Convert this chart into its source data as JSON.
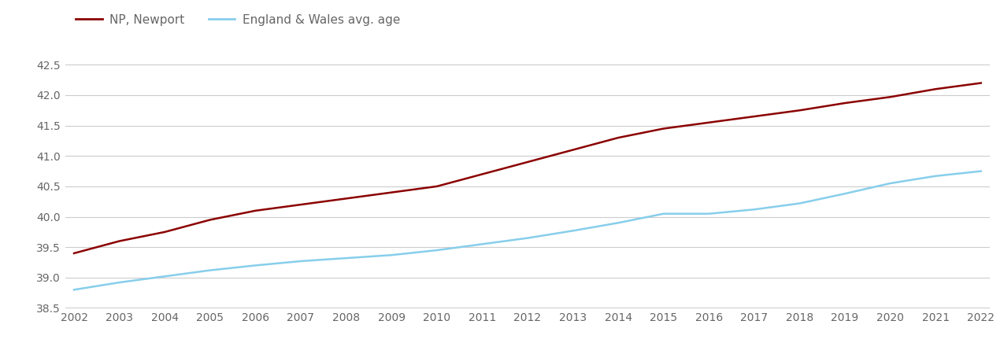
{
  "years": [
    2002,
    2003,
    2004,
    2005,
    2006,
    2007,
    2008,
    2009,
    2010,
    2011,
    2012,
    2013,
    2014,
    2015,
    2016,
    2017,
    2018,
    2019,
    2020,
    2021,
    2022
  ],
  "newport": [
    39.4,
    39.6,
    39.75,
    39.95,
    40.1,
    40.2,
    40.3,
    40.4,
    40.5,
    40.7,
    40.9,
    41.1,
    41.3,
    41.45,
    41.55,
    41.65,
    41.75,
    41.87,
    41.97,
    42.1,
    42.2
  ],
  "england_wales": [
    38.8,
    38.92,
    39.02,
    39.12,
    39.2,
    39.27,
    39.32,
    39.37,
    39.45,
    39.55,
    39.65,
    39.77,
    39.9,
    40.05,
    40.05,
    40.12,
    40.22,
    40.38,
    40.55,
    40.67,
    40.75
  ],
  "newport_color": "#8B0000",
  "england_wales_color": "#87CEEB",
  "newport_label": "NP, Newport",
  "england_wales_label": "England & Wales avg. age",
  "ylim": [
    38.5,
    42.75
  ],
  "yticks": [
    38.5,
    39.0,
    39.5,
    40.0,
    40.5,
    41.0,
    41.5,
    42.0,
    42.5
  ],
  "grid_color": "#cccccc",
  "background_color": "#ffffff",
  "line_width": 1.8,
  "legend_fontsize": 11,
  "tick_fontsize": 10,
  "tick_color": "#666666"
}
